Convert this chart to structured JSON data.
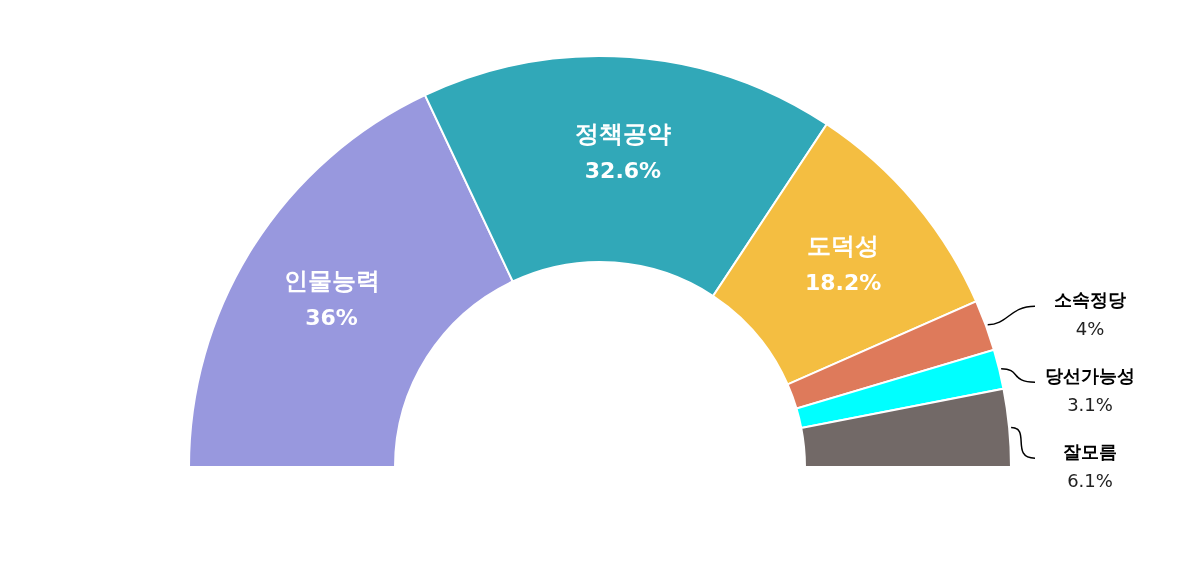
{
  "chart_data": {
    "type": "donut",
    "categories": [
      "인물능력",
      "정책공약",
      "도덕성",
      "소속정당",
      "당선가능성",
      "잘모름"
    ],
    "values": [
      36,
      32.6,
      18.2,
      4,
      3.1,
      6.1
    ],
    "colors": [
      "#9898de",
      "#31a8b8",
      "#f4be41",
      "#de7a5b",
      "#00ffff",
      "#726967"
    ],
    "value_labels": [
      "36%",
      "32.6%",
      "18.2%",
      "4%",
      "3.1%",
      "6.1%"
    ]
  }
}
